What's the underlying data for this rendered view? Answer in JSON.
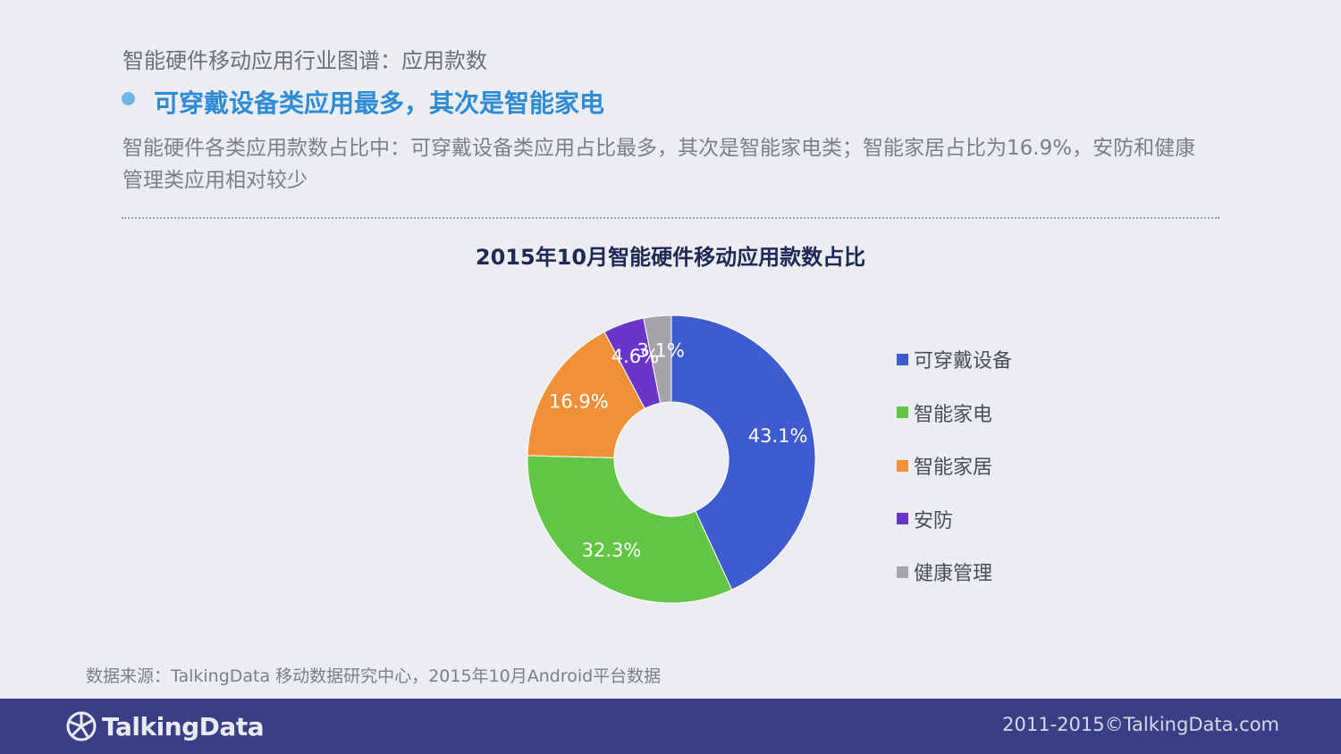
{
  "header": {
    "subtitle": "智能硬件移动应用行业图谱：应用款数",
    "headline": "可穿戴设备类应用最多，其次是智能家电",
    "description": "智能硬件各类应用款数占比中：可穿戴设备类应用占比最多，其次是智能家电类；智能家居占比为16.9%，安防和健康管理类应用相对较少"
  },
  "chart_data": {
    "type": "pie",
    "variant": "donut",
    "title": "2015年10月智能硬件移动应用款数占比",
    "legend_position": "right",
    "series": [
      {
        "name": "可穿戴设备",
        "value": 43.1,
        "label": "43.1%",
        "color": "#3e5bd0"
      },
      {
        "name": "智能家电",
        "value": 32.3,
        "label": "32.3%",
        "color": "#63c545"
      },
      {
        "name": "智能家居",
        "value": 16.9,
        "label": "16.9%",
        "color": "#f0913a"
      },
      {
        "name": "安防",
        "value": 4.6,
        "label": "4.6%",
        "color": "#6a36c9"
      },
      {
        "name": "健康管理",
        "value": 3.1,
        "label": "3.1%",
        "color": "#a4a4a8"
      }
    ]
  },
  "source": "数据来源：TalkingData 移动数据研究中心，2015年10月Android平台数据",
  "footer": {
    "logo_text": "TalkingData",
    "logo_icon": "talkingdata-logo-icon",
    "copyright": "2011-2015©TalkingData.com"
  }
}
